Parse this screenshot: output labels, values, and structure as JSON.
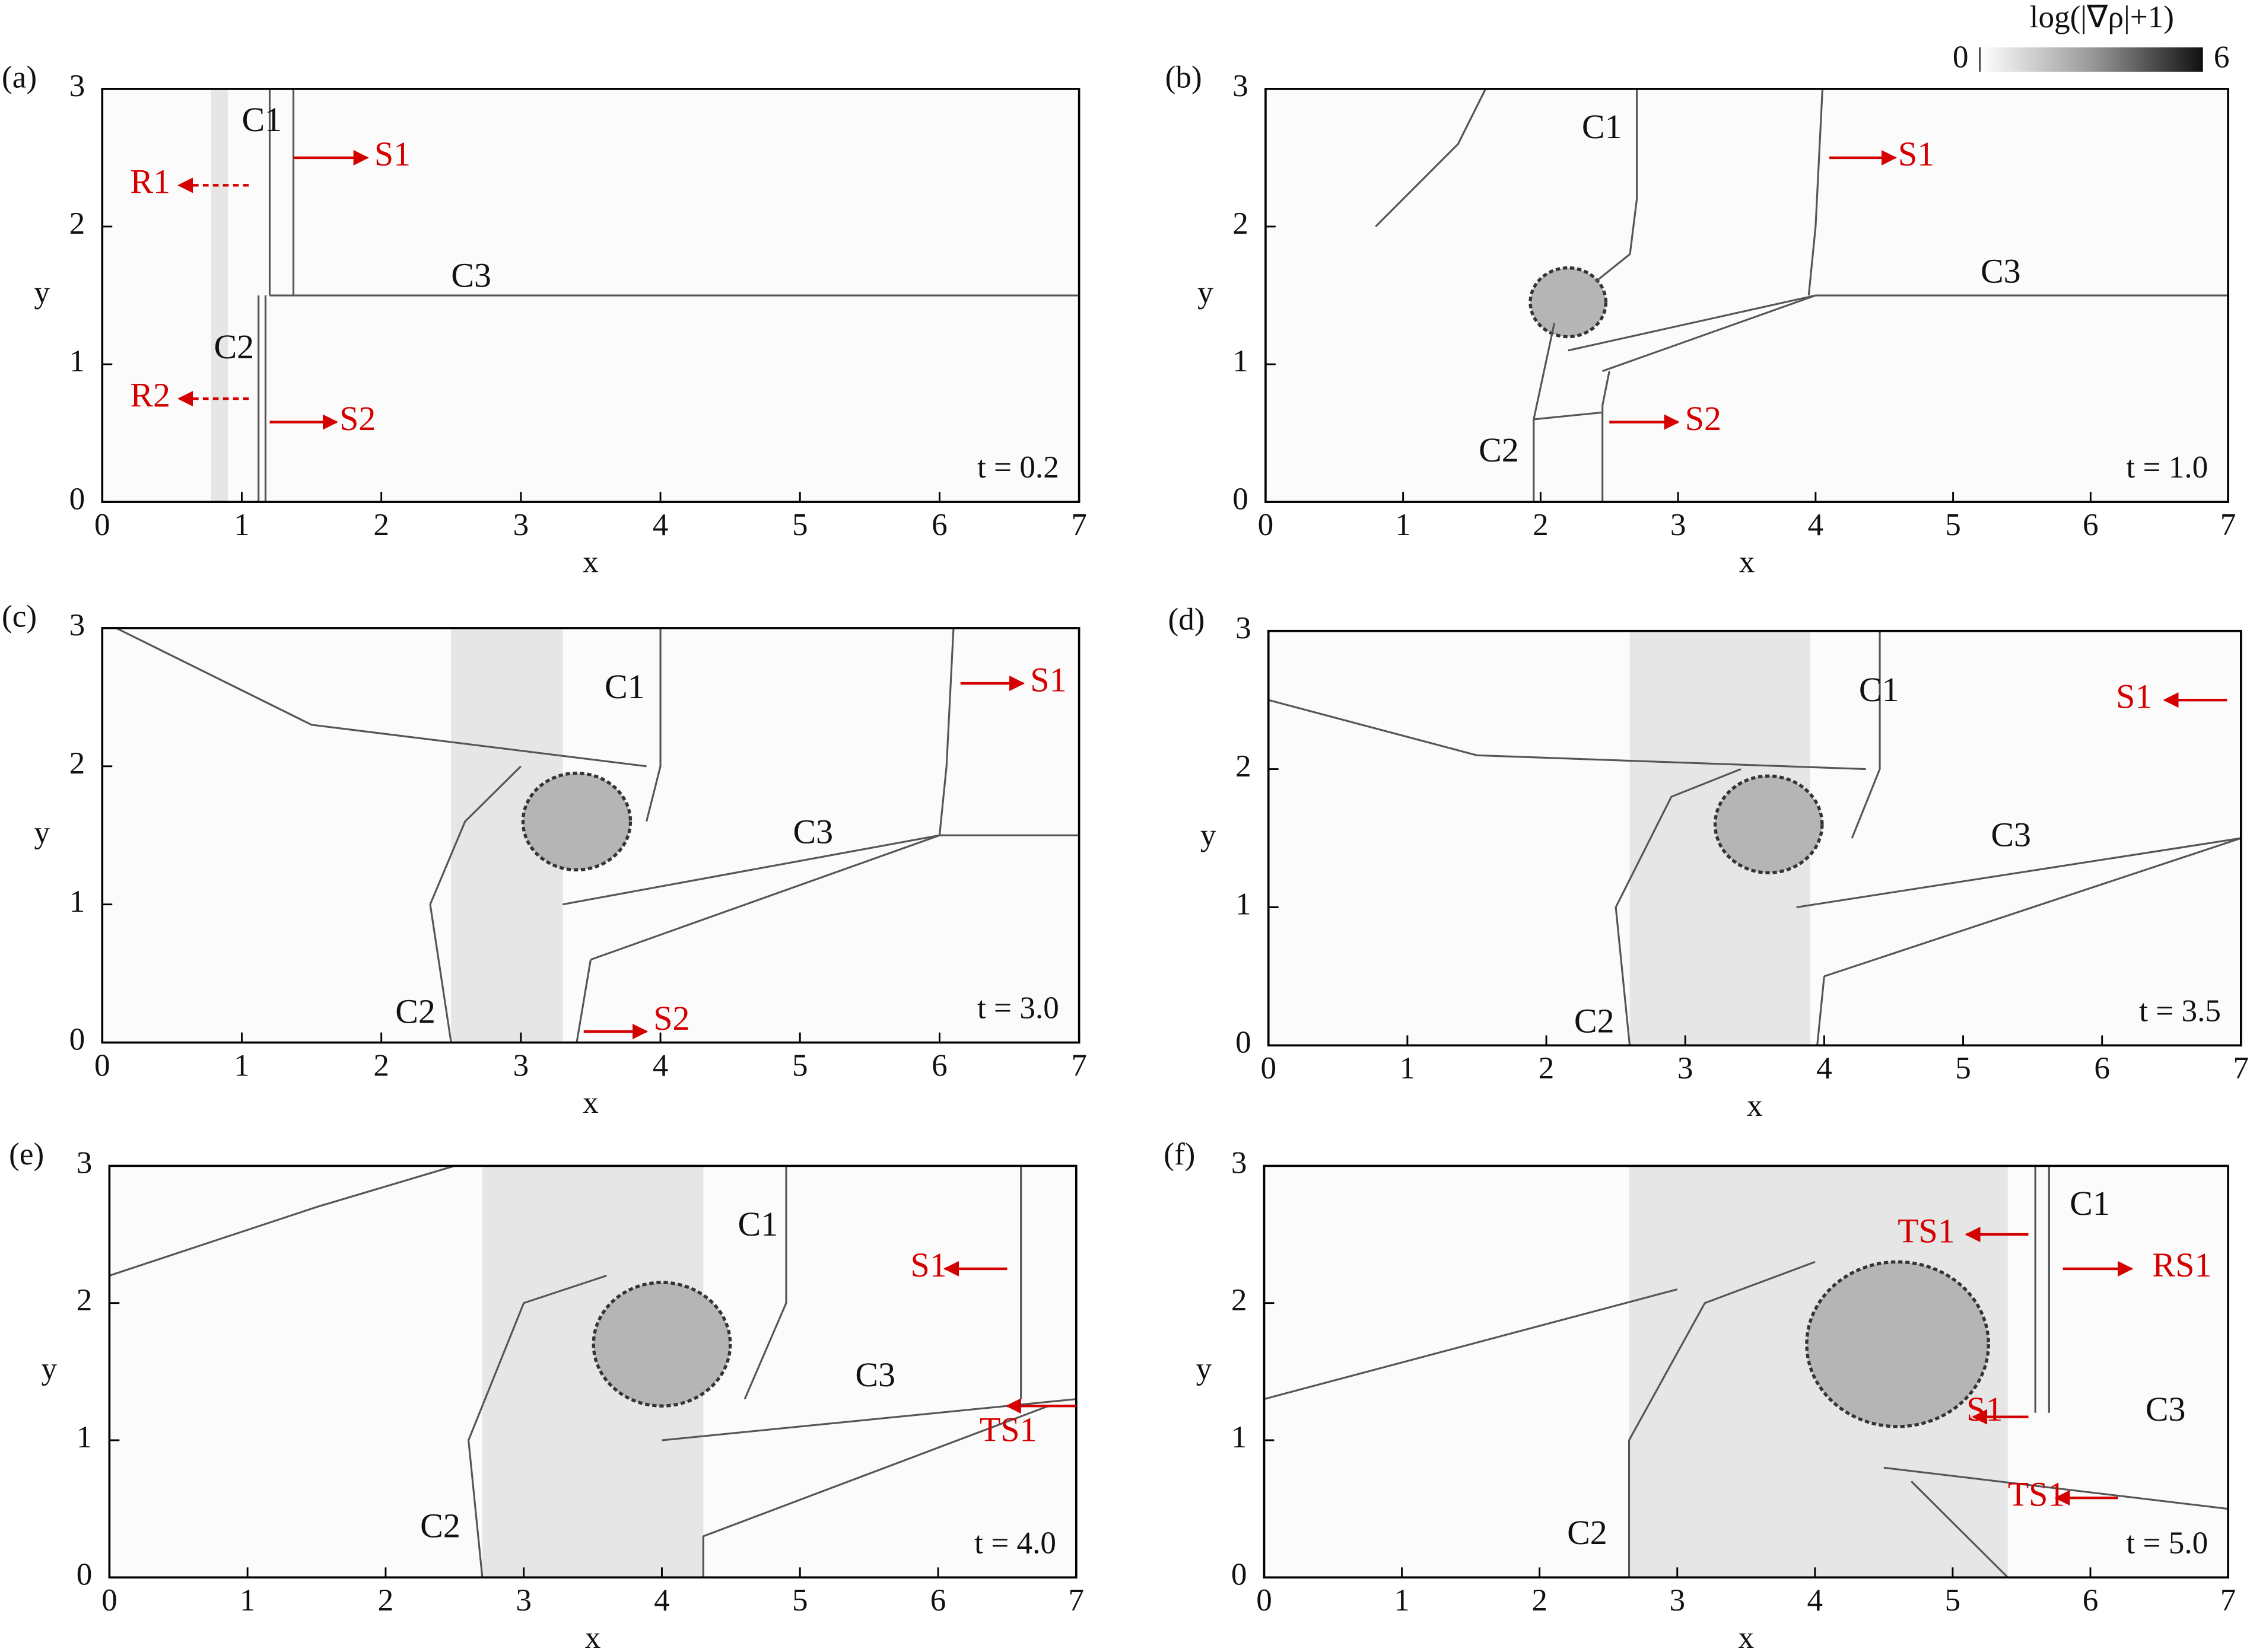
{
  "chart_data": [
    {
      "type": "image",
      "title": "(a)",
      "xlabel": "x",
      "ylabel": "y",
      "xlim": [
        0,
        7
      ],
      "ylim": [
        0,
        3
      ],
      "xticks": [
        0,
        1,
        2,
        3,
        4,
        5,
        6,
        7
      ],
      "yticks": [
        0,
        1,
        2,
        3
      ],
      "time_label": "t =  0.2",
      "annotations": [
        {
          "text": "C1",
          "color": "#111111"
        },
        {
          "text": "S1",
          "color": "#d40000"
        },
        {
          "text": "R1",
          "color": "#d40000"
        },
        {
          "text": "C3",
          "color": "#111111"
        },
        {
          "text": "C2",
          "color": "#111111"
        },
        {
          "text": "R2",
          "color": "#d40000"
        },
        {
          "text": "S2",
          "color": "#d40000"
        }
      ]
    },
    {
      "type": "image",
      "title": "(b)",
      "xlabel": "x",
      "ylabel": "y",
      "xlim": [
        0,
        7
      ],
      "ylim": [
        0,
        3
      ],
      "xticks": [
        0,
        1,
        2,
        3,
        4,
        5,
        6,
        7
      ],
      "yticks": [
        0,
        1,
        2,
        3
      ],
      "time_label": "t = 1.0",
      "annotations": [
        {
          "text": "C1",
          "color": "#111111"
        },
        {
          "text": "S1",
          "color": "#d40000"
        },
        {
          "text": "C3",
          "color": "#111111"
        },
        {
          "text": "C2",
          "color": "#111111"
        },
        {
          "text": "S2",
          "color": "#d40000"
        }
      ],
      "colorbar": {
        "label": "log(|∇ρ|+1)",
        "lim": [
          0,
          6
        ],
        "ticks": [
          0,
          6
        ]
      }
    },
    {
      "type": "image",
      "title": "(c)",
      "xlabel": "x",
      "ylabel": "y",
      "xlim": [
        0,
        7
      ],
      "ylim": [
        0,
        3
      ],
      "xticks": [
        0,
        1,
        2,
        3,
        4,
        5,
        6,
        7
      ],
      "yticks": [
        0,
        1,
        2,
        3
      ],
      "time_label": "t = 3.0",
      "annotations": [
        {
          "text": "C1",
          "color": "#111111"
        },
        {
          "text": "S1",
          "color": "#d40000"
        },
        {
          "text": "C3",
          "color": "#111111"
        },
        {
          "text": "C2",
          "color": "#111111"
        },
        {
          "text": "S2",
          "color": "#d40000"
        }
      ]
    },
    {
      "type": "image",
      "title": "(d)",
      "xlabel": "x",
      "ylabel": "y",
      "xlim": [
        0,
        7
      ],
      "ylim": [
        0,
        3
      ],
      "xticks": [
        0,
        1,
        2,
        3,
        4,
        5,
        6,
        7
      ],
      "yticks": [
        0,
        1,
        2,
        3
      ],
      "time_label": "t = 3.5",
      "annotations": [
        {
          "text": "C1",
          "color": "#111111"
        },
        {
          "text": "S1",
          "color": "#d40000"
        },
        {
          "text": "C3",
          "color": "#111111"
        },
        {
          "text": "C2",
          "color": "#111111"
        }
      ]
    },
    {
      "type": "image",
      "title": "(e)",
      "xlabel": "x",
      "ylabel": "y",
      "xlim": [
        0,
        7
      ],
      "ylim": [
        0,
        3
      ],
      "xticks": [
        0,
        1,
        2,
        3,
        4,
        5,
        6,
        7
      ],
      "yticks": [
        0,
        1,
        2,
        3
      ],
      "time_label": "t = 4.0",
      "annotations": [
        {
          "text": "C1",
          "color": "#111111"
        },
        {
          "text": "S1",
          "color": "#d40000"
        },
        {
          "text": "C3",
          "color": "#111111"
        },
        {
          "text": "TS1",
          "color": "#d40000"
        },
        {
          "text": "C2",
          "color": "#111111"
        }
      ]
    },
    {
      "type": "image",
      "title": "(f)",
      "xlabel": "x",
      "ylabel": "y",
      "xlim": [
        0,
        7
      ],
      "ylim": [
        0,
        3
      ],
      "xticks": [
        0,
        1,
        2,
        3,
        4,
        5,
        6,
        7
      ],
      "yticks": [
        0,
        1,
        2,
        3
      ],
      "time_label": "t = 5.0",
      "annotations": [
        {
          "text": "TS1",
          "color": "#d40000"
        },
        {
          "text": "C1",
          "color": "#111111"
        },
        {
          "text": "RS1",
          "color": "#d40000"
        },
        {
          "text": "S1",
          "color": "#d40000"
        },
        {
          "text": "C3",
          "color": "#111111"
        },
        {
          "text": "TS1",
          "color": "#d40000"
        },
        {
          "text": "C2",
          "color": "#111111"
        }
      ]
    }
  ]
}
